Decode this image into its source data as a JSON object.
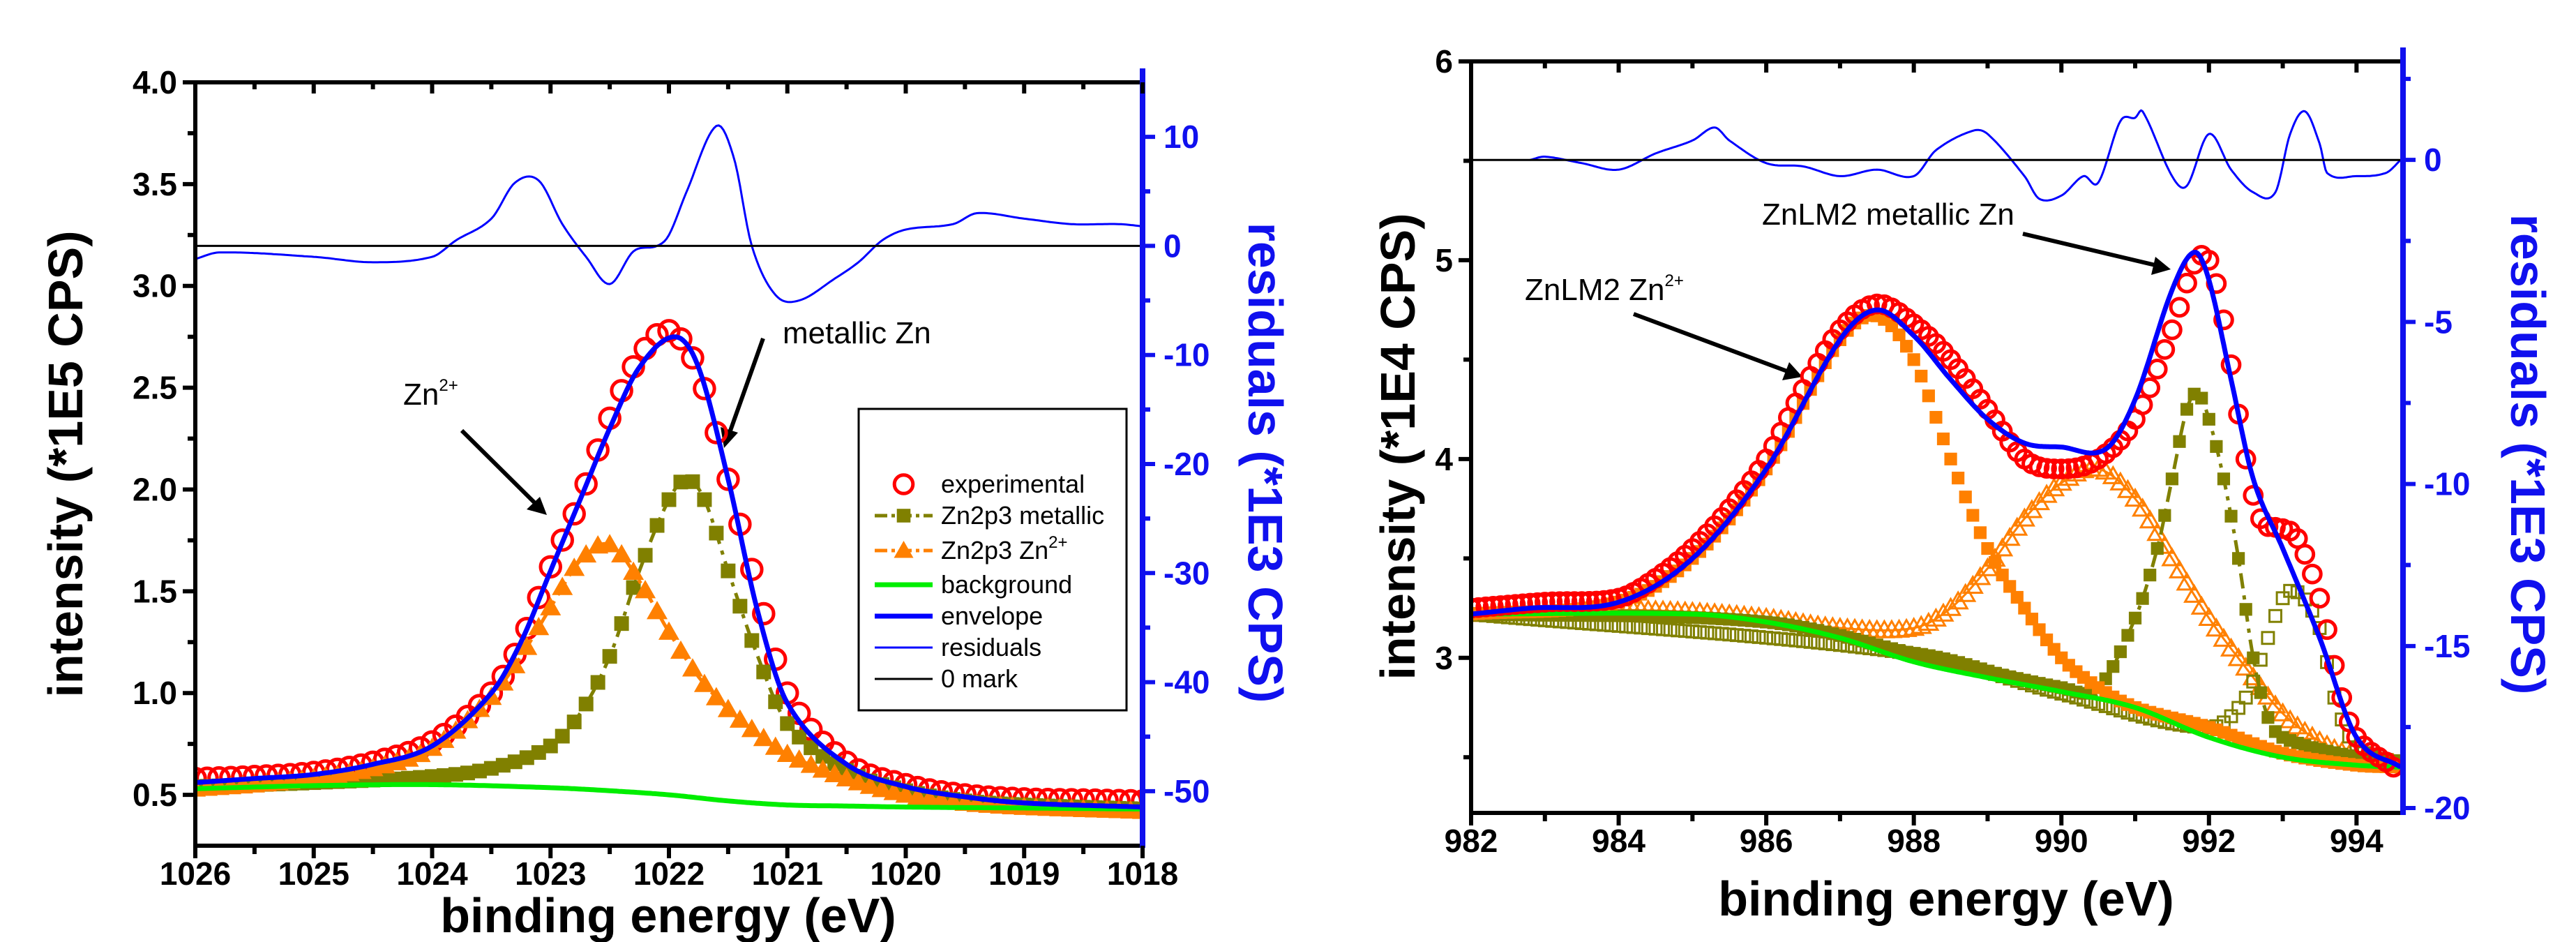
{
  "chart_data": [
    {
      "type": "line",
      "xlabel": "binding energy (eV)",
      "ylabel": "intensity (*1E5 CPS)",
      "y2label": "residuals (*1E3 CPS)",
      "xlim": [
        1026,
        1018
      ],
      "ylim": [
        0.25,
        4.0
      ],
      "y2lim": [
        -55,
        15
      ],
      "xticks": [
        1026,
        1025,
        1024,
        1023,
        1022,
        1021,
        1020,
        1019,
        1018
      ],
      "yticks": [
        "0.5",
        "1.0",
        "1.5",
        "2.0",
        "2.5",
        "3.0",
        "3.5",
        "4.0"
      ],
      "y2ticks": [
        "-50",
        "-40",
        "-30",
        "-20",
        "-10",
        "0",
        "10"
      ],
      "annotations": [
        {
          "text": "metallic Zn",
          "sup": ""
        },
        {
          "text": "Zn",
          "sup": "2+"
        }
      ],
      "legend": {
        "placement": "lower-right",
        "entries": [
          {
            "label": "experimental",
            "sup": ""
          },
          {
            "label": "Zn2p3 metallic",
            "sup": ""
          },
          {
            "label": "Zn2p3 Zn",
            "sup": "2+"
          },
          {
            "label": "background",
            "sup": ""
          },
          {
            "label": "envelope",
            "sup": ""
          },
          {
            "label": "residuals",
            "sup": ""
          },
          {
            "label": "0 mark",
            "sup": ""
          }
        ]
      },
      "series": [
        {
          "name": "experimental",
          "axis": "left",
          "color": "#ff0000",
          "marker": "circle-open",
          "line": "none",
          "x": [
            1018,
            1018.5,
            1019,
            1019.5,
            1020,
            1020.5,
            1021,
            1021.25,
            1021.5,
            1021.75,
            1022,
            1022.25,
            1022.5,
            1022.75,
            1023,
            1023.25,
            1023.5,
            1024,
            1024.5,
            1025,
            1025.5,
            1026
          ],
          "y": [
            0.47,
            0.475,
            0.48,
            0.5,
            0.55,
            0.66,
            1.0,
            1.5,
            2.05,
            2.58,
            2.78,
            2.65,
            2.35,
            1.95,
            1.62,
            1.25,
            1.0,
            0.76,
            0.66,
            0.61,
            0.59,
            0.58
          ]
        },
        {
          "name": "Zn2p3 metallic",
          "axis": "left",
          "color": "#808000",
          "marker": "square-filled",
          "line": "dashdot",
          "x": [
            1018,
            1019,
            1019.5,
            1020,
            1020.5,
            1021,
            1021.25,
            1021.5,
            1021.7,
            1021.85,
            1022,
            1022.25,
            1022.5,
            1022.75,
            1023,
            1023.5,
            1024,
            1025,
            1026
          ],
          "y": [
            0.43,
            0.45,
            0.47,
            0.52,
            0.62,
            0.85,
            1.18,
            1.6,
            1.95,
            2.05,
            1.95,
            1.6,
            1.18,
            0.9,
            0.74,
            0.63,
            0.59,
            0.56,
            0.54
          ]
        },
        {
          "name": "Zn2p3 Zn2+",
          "axis": "left",
          "color": "#ff8000",
          "marker": "triangle-filled",
          "line": "dashdot",
          "x": [
            1018,
            1019,
            1019.5,
            1020,
            1020.5,
            1021,
            1021.25,
            1021.5,
            1021.75,
            1022,
            1022.25,
            1022.5,
            1022.75,
            1023,
            1023.25,
            1023.5,
            1024,
            1024.5,
            1025,
            1025.5,
            1026
          ],
          "y": [
            0.42,
            0.44,
            0.46,
            0.5,
            0.58,
            0.7,
            0.8,
            0.92,
            1.08,
            1.3,
            1.55,
            1.73,
            1.65,
            1.42,
            1.18,
            0.98,
            0.73,
            0.63,
            0.58,
            0.55,
            0.53
          ]
        },
        {
          "name": "background",
          "axis": "left",
          "color": "#00ee00",
          "marker": "none",
          "line": "solid-thick",
          "x": [
            1018,
            1019,
            1020,
            1020.5,
            1021,
            1021.5,
            1022,
            1022.5,
            1023,
            1024,
            1025,
            1026
          ],
          "y": [
            0.43,
            0.435,
            0.44,
            0.445,
            0.45,
            0.47,
            0.5,
            0.52,
            0.535,
            0.55,
            0.545,
            0.53
          ]
        },
        {
          "name": "envelope",
          "axis": "left",
          "color": "#0000ff",
          "marker": "none",
          "line": "solid-thick",
          "x": [
            1018,
            1019,
            1019.5,
            1020,
            1020.5,
            1021,
            1021.25,
            1021.5,
            1021.75,
            1021.95,
            1022.25,
            1022.5,
            1022.75,
            1023,
            1023.25,
            1023.5,
            1024,
            1024.5,
            1025,
            1025.5,
            1026
          ],
          "y": [
            0.44,
            0.46,
            0.49,
            0.54,
            0.65,
            0.95,
            1.4,
            2.05,
            2.6,
            2.75,
            2.6,
            2.3,
            1.95,
            1.6,
            1.25,
            1.0,
            0.74,
            0.65,
            0.6,
            0.58,
            0.56
          ]
        },
        {
          "name": "residuals",
          "axis": "right",
          "color": "#0000ff",
          "marker": "none",
          "line": "solid-thin",
          "x": [
            1018,
            1018.2,
            1018.6,
            1019,
            1019.4,
            1019.6,
            1020,
            1020.2,
            1020.4,
            1020.6,
            1020.9,
            1021.1,
            1021.3,
            1021.45,
            1021.6,
            1021.85,
            1022,
            1022.1,
            1022.3,
            1022.5,
            1022.7,
            1022.9,
            1023.1,
            1023.3,
            1023.5,
            1023.8,
            1024,
            1024.5,
            1025,
            1025.8,
            1026
          ],
          "y": [
            1.8,
            2,
            2,
            2.5,
            3,
            2,
            1.5,
            0.5,
            -1.5,
            -3,
            -5,
            -4.5,
            0,
            8,
            11,
            5,
            1,
            0,
            -0.5,
            -3.5,
            -1,
            2,
            6,
            5.8,
            2.5,
            0.5,
            -1,
            -1.5,
            -1,
            -0.6,
            -1.2
          ]
        },
        {
          "name": "0 mark",
          "axis": "right",
          "color": "#000000",
          "marker": "none",
          "line": "zero",
          "x": [
            1018,
            1026
          ],
          "y": [
            0,
            0
          ]
        }
      ]
    },
    {
      "type": "line",
      "xlabel": "binding energy (eV)",
      "ylabel": "intensity (*1E4 CPS)",
      "y2label": "residuals (*1E3 CPS)",
      "xlim": [
        982,
        994.63
      ],
      "ylim": [
        2.22,
        6.0
      ],
      "y2lim": [
        -20.15,
        3.04
      ],
      "xticks": [
        982,
        984,
        986,
        988,
        990,
        992,
        994
      ],
      "yticks": [
        "3",
        "4",
        "5",
        "6"
      ],
      "y2ticks": [
        "-20",
        "-15",
        "-10",
        "-5",
        "0"
      ],
      "annotations": [
        {
          "text": "ZnLM2 metallic Zn",
          "sup": ""
        },
        {
          "text": "ZnLM2 Zn",
          "sup": "2+"
        }
      ],
      "series": [
        {
          "axis": "left",
          "color": "#ff8000",
          "marker": "triangle-open",
          "line": "solid-thin",
          "x": [
            982,
            984,
            985,
            986,
            987,
            988,
            988.5,
            989,
            989.5,
            990,
            990.5,
            991,
            991.5,
            992,
            992.5,
            993,
            993.5,
            994,
            994.6
          ],
          "y": [
            3.22,
            3.24,
            3.23,
            3.2,
            3.15,
            3.15,
            3.25,
            3.45,
            3.7,
            3.88,
            3.95,
            3.8,
            3.5,
            3.2,
            2.95,
            2.72,
            2.58,
            2.5,
            2.46
          ]
        },
        {
          "axis": "left",
          "color": "#808000",
          "marker": "square-open",
          "line": "none",
          "x": [
            982,
            988,
            990,
            992,
            992.5,
            992.8,
            993,
            993.2,
            993.5,
            993.7,
            994,
            994.6
          ],
          "y": [
            3.22,
            3.02,
            2.82,
            2.65,
            2.8,
            3.1,
            3.3,
            3.33,
            3.15,
            2.8,
            2.55,
            2.47
          ]
        },
        {
          "axis": "left",
          "color": "#808000",
          "marker": "square-filled",
          "line": "dashdot",
          "x": [
            982,
            986,
            988,
            990,
            990.5,
            991,
            991.3,
            991.5,
            991.7,
            991.85,
            992,
            992.2,
            992.4,
            992.6,
            992.8,
            993,
            994,
            994.6
          ],
          "y": [
            3.22,
            3.18,
            3.02,
            2.85,
            2.85,
            3.2,
            3.55,
            3.9,
            4.25,
            4.33,
            4.2,
            3.9,
            3.5,
            3.0,
            2.7,
            2.6,
            2.5,
            2.47
          ]
        },
        {
          "axis": "left",
          "color": "#ff8000",
          "marker": "square-filled",
          "line": "none",
          "x": [
            982,
            984,
            985,
            986,
            987,
            987.5,
            988,
            988.5,
            989,
            989.5,
            990,
            990.5,
            991,
            992,
            993,
            994,
            994.6
          ],
          "y": [
            3.22,
            3.28,
            3.5,
            3.95,
            4.6,
            4.72,
            4.5,
            4.0,
            3.55,
            3.25,
            3.0,
            2.85,
            2.75,
            2.65,
            2.52,
            2.46,
            2.45
          ]
        },
        {
          "axis": "left",
          "color": "#00ee00",
          "marker": "none",
          "line": "solid-thick",
          "x": [
            982,
            985,
            986,
            987,
            988,
            989,
            990,
            991,
            992,
            993,
            994,
            994.6
          ],
          "y": [
            3.22,
            3.22,
            3.18,
            3.1,
            2.98,
            2.9,
            2.83,
            2.75,
            2.6,
            2.5,
            2.46,
            2.45
          ]
        },
        {
          "axis": "left",
          "color": "#ff0000",
          "marker": "circle-open",
          "line": "none",
          "x": [
            982,
            983,
            984,
            984.5,
            985,
            985.5,
            986,
            986.5,
            987,
            987.5,
            988,
            988.5,
            989,
            989.5,
            990,
            990.5,
            991,
            991.5,
            991.8,
            992,
            992.2,
            992.5,
            992.7,
            993,
            993.2,
            993.5,
            993.8,
            994,
            994.5
          ],
          "y": [
            3.25,
            3.28,
            3.3,
            3.4,
            3.55,
            3.75,
            4.0,
            4.35,
            4.65,
            4.78,
            4.68,
            4.5,
            4.25,
            4.0,
            3.95,
            4.0,
            4.2,
            4.65,
            4.98,
            5.0,
            4.7,
            4.0,
            3.7,
            3.65,
            3.6,
            3.3,
            2.8,
            2.6,
            2.45
          ]
        },
        {
          "axis": "left",
          "color": "#0000ff",
          "marker": "none",
          "line": "solid-thick",
          "x": [
            982,
            982.8,
            984,
            985,
            986,
            987,
            987.5,
            988,
            988.5,
            989,
            989.5,
            990,
            990.6,
            991,
            991.5,
            991.8,
            992,
            992.3,
            992.6,
            993,
            993.5,
            994,
            994.6
          ],
          "y": [
            3.22,
            3.25,
            3.28,
            3.5,
            3.95,
            4.6,
            4.75,
            4.62,
            4.4,
            4.2,
            4.08,
            4.06,
            4.05,
            4.3,
            4.85,
            5.04,
            4.9,
            4.4,
            3.9,
            3.55,
            3.1,
            2.6,
            2.45
          ]
        },
        {
          "axis": "right",
          "color": "#0000ff",
          "marker": "none",
          "line": "solid-thin",
          "x": [
            982.8,
            983,
            983.5,
            984,
            984.5,
            985,
            985.3,
            985.5,
            986,
            986.5,
            987,
            987.5,
            988,
            988.3,
            988.8,
            989,
            989.5,
            989.7,
            990,
            990.3,
            990.5,
            990.8,
            991,
            991.1,
            991.5,
            991.7,
            992,
            992.3,
            992.6,
            992.9,
            993.1,
            993.3,
            993.5,
            993.6,
            994,
            994.4,
            994.6
          ],
          "y": [
            0,
            0.1,
            -0.1,
            -0.3,
            0.2,
            0.6,
            1.0,
            0.6,
            -0.1,
            -0.2,
            -0.5,
            -0.3,
            -0.5,
            0.3,
            0.9,
            0.8,
            -0.5,
            -1.2,
            -1.1,
            -0.5,
            -0.7,
            1.2,
            1.3,
            1.5,
            -0.5,
            -0.8,
            0.8,
            -0.3,
            -1.0,
            -1.0,
            0.8,
            1.5,
            0.5,
            -0.4,
            -0.5,
            -0.4,
            0
          ]
        },
        {
          "axis": "right",
          "color": "#000000",
          "marker": "none",
          "line": "zero",
          "x": [
            982,
            994.63
          ],
          "y": [
            0,
            0
          ]
        }
      ]
    }
  ]
}
